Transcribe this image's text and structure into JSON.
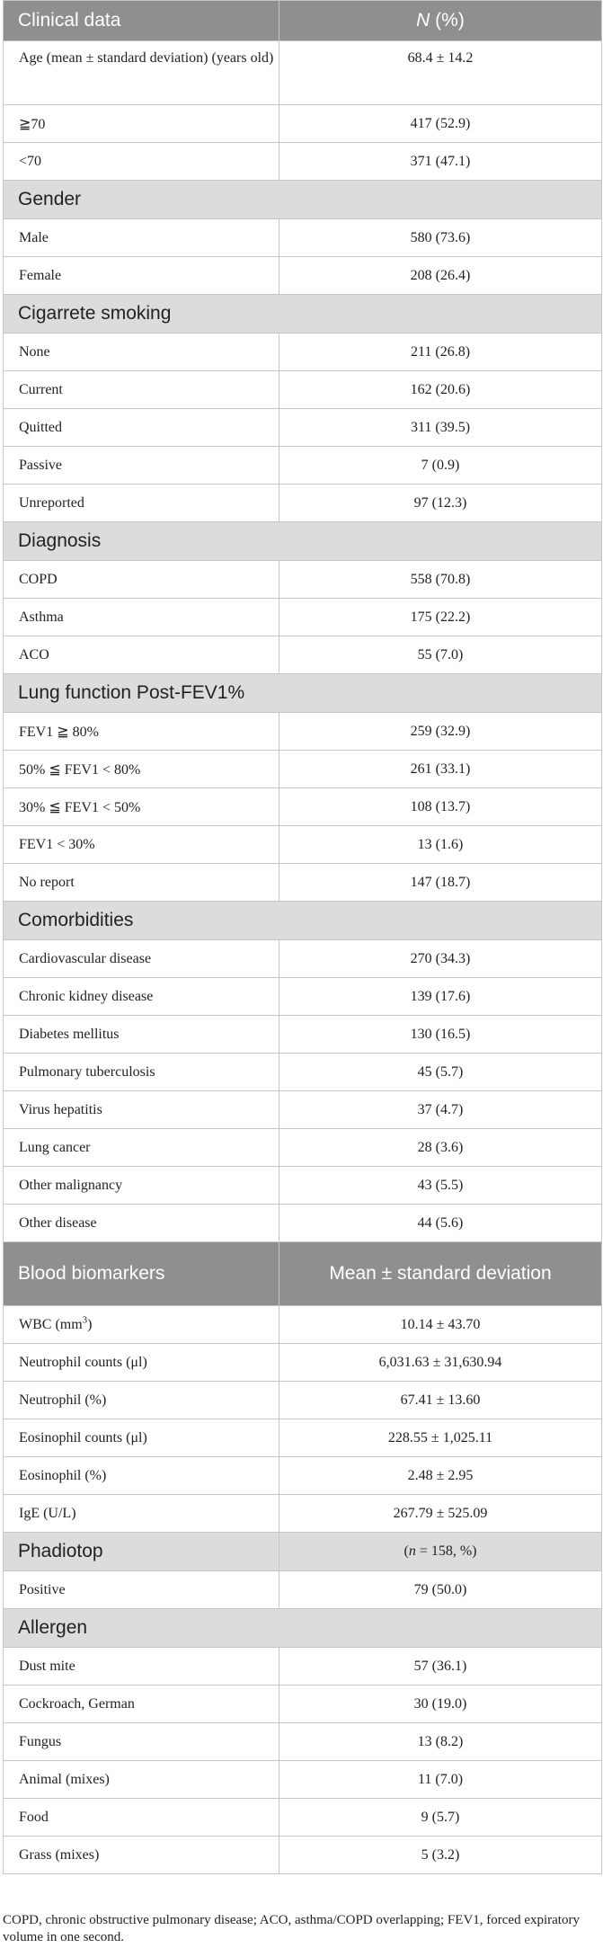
{
  "header": {
    "col1": "Clinical data",
    "col2_italic": "N",
    "col2_rest": " (%)"
  },
  "age": {
    "label": "Age (mean ± standard deviation) (years old)",
    "value": "68.4 ± 14.2"
  },
  "age_groups": [
    {
      "label": "≧70",
      "value": "417 (52.9)"
    },
    {
      "label": "<70",
      "value": "371 (47.1)"
    }
  ],
  "gender": {
    "title": "Gender",
    "rows": [
      {
        "label": "Male",
        "value": "580 (73.6)"
      },
      {
        "label": "Female",
        "value": "208 (26.4)"
      }
    ]
  },
  "smoking": {
    "title": "Cigarrete smoking",
    "rows": [
      {
        "label": "None",
        "value": "211 (26.8)"
      },
      {
        "label": "Current",
        "value": "162 (20.6)"
      },
      {
        "label": "Quitted",
        "value": "311 (39.5)"
      },
      {
        "label": "Passive",
        "value": "7 (0.9)"
      },
      {
        "label": "Unreported",
        "value": "97 (12.3)"
      }
    ]
  },
  "diagnosis": {
    "title": "Diagnosis",
    "rows": [
      {
        "label": "COPD",
        "value": "558 (70.8)"
      },
      {
        "label": "Asthma",
        "value": "175 (22.2)"
      },
      {
        "label": "ACO",
        "value": "55 (7.0)"
      }
    ]
  },
  "lung": {
    "title": "Lung function Post-FEV1%",
    "rows": [
      {
        "label": "FEV1 ≧ 80%",
        "value": "259 (32.9)"
      },
      {
        "label": "50% ≦ FEV1 < 80%",
        "value": "261 (33.1)"
      },
      {
        "label": "30% ≦ FEV1 < 50%",
        "value": "108 (13.7)"
      },
      {
        "label": "FEV1 < 30%",
        "value": "13 (1.6)"
      },
      {
        "label": "No report",
        "value": "147 (18.7)"
      }
    ]
  },
  "comorbidities": {
    "title": "Comorbidities",
    "rows": [
      {
        "label": "Cardiovascular disease",
        "value": "270 (34.3)"
      },
      {
        "label": "Chronic kidney disease",
        "value": "139 (17.6)"
      },
      {
        "label": "Diabetes mellitus",
        "value": "130 (16.5)"
      },
      {
        "label": "Pulmonary tuberculosis",
        "value": "45 (5.7)"
      },
      {
        "label": "Virus hepatitis",
        "value": "37 (4.7)"
      },
      {
        "label": "Lung cancer",
        "value": "28 (3.6)"
      },
      {
        "label": "Other malignancy",
        "value": "43 (5.5)"
      },
      {
        "label": "Other disease",
        "value": "44 (5.6)"
      }
    ]
  },
  "blood": {
    "title": "Blood biomarkers",
    "col2": "Mean ± standard deviation",
    "wbc": {
      "label_pre": "WBC (mm",
      "label_sup": "3",
      "label_post": ")",
      "value": "10.14 ± 43.70"
    },
    "rows": [
      {
        "label": "Neutrophil counts (μl)",
        "value": "6,031.63 ± 31,630.94"
      },
      {
        "label": "Neutrophil (%)",
        "value": "67.41 ± 13.60"
      },
      {
        "label": "Eosinophil counts (μl)",
        "value": "228.55 ± 1,025.11"
      },
      {
        "label": "Eosinophil (%)",
        "value": "2.48 ± 2.95"
      },
      {
        "label": "IgE (U/L)",
        "value": "267.79 ± 525.09"
      }
    ]
  },
  "phadiotop": {
    "title": "Phadiotop",
    "n_pre": "(",
    "n_italic": "n",
    "n_post": " = 158, %)",
    "rows": [
      {
        "label": "Positive",
        "value": "79 (50.0)"
      }
    ]
  },
  "allergen": {
    "title": "Allergen",
    "rows": [
      {
        "label": "Dust mite",
        "value": "57 (36.1)"
      },
      {
        "label": "Cockroach, German",
        "value": "30 (19.0)"
      },
      {
        "label": "Fungus",
        "value": "13 (8.2)"
      },
      {
        "label": "Animal (mixes)",
        "value": "11 (7.0)"
      },
      {
        "label": "Food",
        "value": "9 (5.7)"
      },
      {
        "label": "Grass (mixes)",
        "value": "5 (3.2)"
      }
    ]
  },
  "footnote": "COPD, chronic obstructive pulmonary disease; ACO, asthma/COPD overlapping; FEV1, forced expiratory volume in one second."
}
